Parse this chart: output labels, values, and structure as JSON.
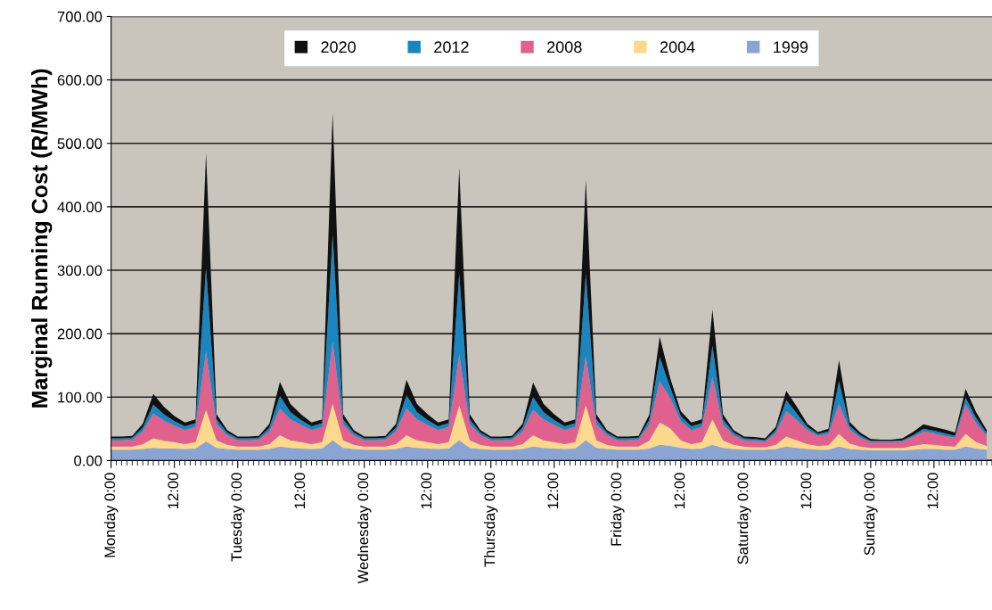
{
  "chart_data": {
    "type": "area",
    "stacked": true,
    "ylabel": "Marginal Running Cost (R/MWh)",
    "categories": [
      "Monday 0:00",
      null,
      null,
      null,
      null,
      null,
      "12:00",
      null,
      null,
      null,
      null,
      null,
      "Tuesday 0:00",
      null,
      null,
      null,
      null,
      null,
      "12:00",
      null,
      null,
      null,
      null,
      null,
      "Wednesday 0:00",
      null,
      null,
      null,
      null,
      null,
      "12:00",
      null,
      null,
      null,
      null,
      null,
      "Thursday 0:00",
      null,
      null,
      null,
      null,
      null,
      "12:00",
      null,
      null,
      null,
      null,
      null,
      "Friday 0:00",
      null,
      null,
      null,
      null,
      null,
      "12:00",
      null,
      null,
      null,
      null,
      null,
      "Saturday 0:00",
      null,
      null,
      null,
      null,
      null,
      "12:00",
      null,
      null,
      null,
      null,
      null,
      "Sunday 0:00",
      null,
      null,
      null,
      null,
      null,
      "12:00",
      null,
      null,
      null,
      null,
      null
    ],
    "series": [
      {
        "name": "1999",
        "color": "#8aa4d4",
        "values": [
          17,
          17,
          17,
          18,
          20,
          19,
          19,
          18,
          19,
          30,
          20,
          18,
          17,
          17,
          17,
          18,
          22,
          20,
          19,
          18,
          19,
          32,
          20,
          18,
          17,
          17,
          17,
          18,
          22,
          20,
          19,
          18,
          19,
          32,
          20,
          18,
          17,
          17,
          17,
          18,
          22,
          20,
          19,
          18,
          19,
          32,
          20,
          18,
          17,
          17,
          17,
          19,
          25,
          23,
          20,
          18,
          19,
          25,
          20,
          18,
          17,
          17,
          17,
          18,
          22,
          20,
          18,
          17,
          17,
          22,
          18,
          17,
          16,
          16,
          16,
          16,
          17,
          18,
          18,
          17,
          17,
          22,
          19,
          17
        ]
      },
      {
        "name": "2004",
        "color": "#fcd98c",
        "values": [
          5,
          5,
          5,
          8,
          15,
          12,
          10,
          8,
          10,
          50,
          12,
          7,
          5,
          5,
          5,
          8,
          18,
          12,
          10,
          8,
          10,
          58,
          12,
          7,
          5,
          5,
          5,
          8,
          18,
          12,
          10,
          8,
          10,
          55,
          12,
          7,
          5,
          5,
          5,
          8,
          18,
          12,
          10,
          8,
          10,
          55,
          12,
          7,
          5,
          5,
          5,
          12,
          35,
          28,
          12,
          8,
          10,
          40,
          12,
          7,
          5,
          4,
          4,
          7,
          16,
          12,
          8,
          6,
          7,
          20,
          9,
          5,
          4,
          4,
          4,
          4,
          6,
          8,
          7,
          6,
          5,
          20,
          10,
          6
        ]
      },
      {
        "name": "2008",
        "color": "#e0608e",
        "values": [
          10,
          10,
          11,
          20,
          39,
          32,
          26,
          22,
          24,
          92,
          25,
          15,
          10,
          10,
          11,
          20,
          42,
          33,
          27,
          22,
          24,
          97,
          25,
          15,
          10,
          10,
          11,
          20,
          42,
          33,
          27,
          22,
          24,
          80,
          25,
          15,
          10,
          10,
          11,
          20,
          40,
          33,
          27,
          22,
          24,
          78,
          25,
          15,
          10,
          10,
          11,
          25,
          65,
          48,
          30,
          22,
          24,
          67,
          25,
          15,
          10,
          10,
          9,
          18,
          40,
          32,
          22,
          16,
          18,
          47,
          22,
          14,
          9,
          9,
          9,
          10,
          14,
          20,
          18,
          16,
          14,
          46,
          30,
          16
        ]
      },
      {
        "name": "2012",
        "color": "#1a86c0",
        "values": [
          3,
          3,
          3,
          6,
          14,
          10,
          7,
          6,
          6,
          132,
          8,
          4,
          3,
          3,
          3,
          6,
          20,
          11,
          8,
          6,
          6,
          169,
          8,
          4,
          3,
          3,
          3,
          6,
          21,
          11,
          8,
          6,
          6,
          127,
          8,
          4,
          3,
          3,
          3,
          6,
          20,
          11,
          8,
          6,
          6,
          129,
          8,
          4,
          3,
          3,
          3,
          8,
          38,
          16,
          8,
          6,
          6,
          49,
          8,
          4,
          3,
          3,
          2,
          5,
          17,
          10,
          5,
          3,
          4,
          36,
          6,
          4,
          2,
          2,
          2,
          2,
          3,
          4,
          4,
          4,
          3,
          11,
          8,
          4
        ]
      },
      {
        "name": "2020",
        "color": "#111111",
        "values": [
          3,
          3,
          3,
          6,
          17,
          12,
          8,
          6,
          6,
          181,
          8,
          4,
          3,
          3,
          3,
          6,
          22,
          13,
          9,
          6,
          6,
          192,
          8,
          4,
          3,
          3,
          3,
          6,
          24,
          13,
          9,
          6,
          6,
          168,
          8,
          4,
          3,
          3,
          3,
          6,
          23,
          13,
          9,
          6,
          6,
          149,
          8,
          4,
          3,
          3,
          3,
          8,
          32,
          15,
          8,
          6,
          6,
          57,
          8,
          4,
          3,
          3,
          3,
          5,
          15,
          11,
          5,
          3,
          4,
          33,
          6,
          4,
          3,
          2,
          2,
          3,
          5,
          7,
          6,
          6,
          5,
          14,
          9,
          5
        ]
      }
    ],
    "ylim": [
      0,
      700
    ],
    "yticks": [
      {
        "value": 0,
        "label": "0.00"
      },
      {
        "value": 100,
        "label": "100.00"
      },
      {
        "value": 200,
        "label": "200.00"
      },
      {
        "value": 300,
        "label": "300.00"
      },
      {
        "value": 400,
        "label": "400.00"
      },
      {
        "value": 500,
        "label": "500.00"
      },
      {
        "value": 600,
        "label": "600.00"
      },
      {
        "value": 700,
        "label": "700.00"
      }
    ],
    "grid": "y",
    "legend": "top"
  }
}
